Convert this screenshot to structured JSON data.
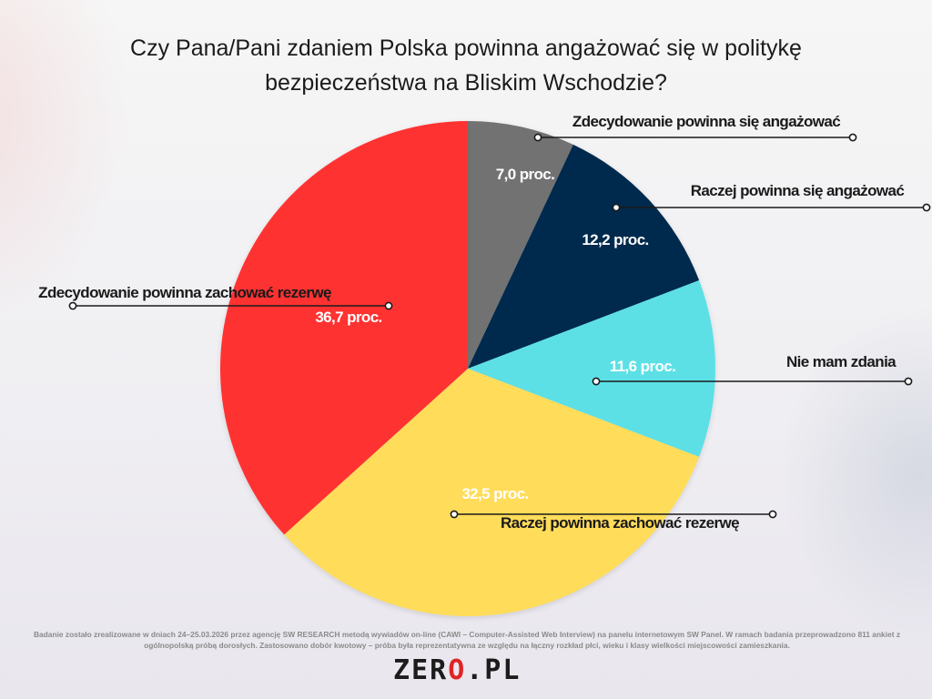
{
  "title": "Czy Pana/Pani zdaniem Polska powinna angażować się w politykę\nbezpieczeństwa na Bliskim Wschodzie?",
  "chart_data": {
    "type": "pie",
    "title": "Czy Pana/Pani zdaniem Polska powinna angażować się w politykę bezpieczeństwa na Bliskim Wschodzie?",
    "slices": [
      {
        "label": "Zdecydowanie powinna się angażować",
        "value": 7.0,
        "value_label": "7,0 proc.",
        "color": "#727272"
      },
      {
        "label": "Raczej powinna się angażować",
        "value": 12.2,
        "value_label": "12,2 proc.",
        "color": "#022c4d"
      },
      {
        "label": "Nie mam zdania",
        "value": 11.6,
        "value_label": "11,6 proc.",
        "color": "#5ce0e6"
      },
      {
        "label": "Raczej powinna zachować rezerwę",
        "value": 32.5,
        "value_label": "32,5 proc.",
        "color": "#ffdc5a"
      },
      {
        "label": "Zdecydowanie powinna zachować rezerwę",
        "value": 36.7,
        "value_label": "36,7 proc.",
        "color": "#ff3233"
      }
    ]
  },
  "footnote": "Badanie zostało zrealizowane w dniach 24–25.03.2026 przez agencję SW RESEARCH metodą wywiadów on-line (CAWI – Computer-Assisted Web Interview) na panelu internetowym SW Panel. W ramach badania przeprowadzono 811 ankiet z ogólnopolską próbą dorosłych. Zastosowano dobór kwotowy – próba była reprezentatywna ze względu na łączny rozkład płci, wieku i klasy wielkości miejscowości zamieszkania.",
  "logo": {
    "part1": "ZER",
    "part2": "O",
    "part3": ".PL"
  }
}
